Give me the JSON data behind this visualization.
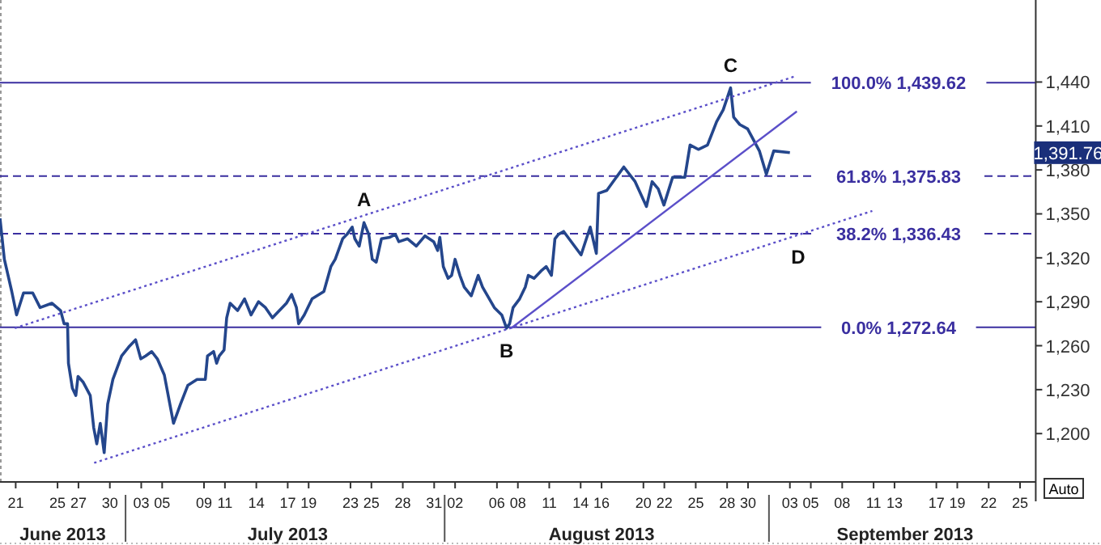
{
  "chart_data": {
    "type": "line",
    "xlim": [
      "2013-06-19T12:00",
      "2013-09-26T12:00"
    ],
    "xticks": [
      {
        "value": "2013-06-21",
        "label": "21"
      },
      {
        "value": "2013-06-25",
        "label": "25"
      },
      {
        "value": "2013-06-27",
        "label": "27"
      },
      {
        "value": "2013-06-30",
        "label": "30"
      },
      {
        "value": "2013-07-03",
        "label": "03"
      },
      {
        "value": "2013-07-05",
        "label": "05"
      },
      {
        "value": "2013-07-09",
        "label": "09"
      },
      {
        "value": "2013-07-11",
        "label": "11"
      },
      {
        "value": "2013-07-14",
        "label": "14"
      },
      {
        "value": "2013-07-17",
        "label": "17"
      },
      {
        "value": "2013-07-19",
        "label": "19"
      },
      {
        "value": "2013-07-23",
        "label": "23"
      },
      {
        "value": "2013-07-25",
        "label": "25"
      },
      {
        "value": "2013-07-28",
        "label": "28"
      },
      {
        "value": "2013-07-31",
        "label": "31"
      },
      {
        "value": "2013-08-02",
        "label": "02"
      },
      {
        "value": "2013-08-06",
        "label": "06"
      },
      {
        "value": "2013-08-08",
        "label": "08"
      },
      {
        "value": "2013-08-11",
        "label": "11"
      },
      {
        "value": "2013-08-14",
        "label": "14"
      },
      {
        "value": "2013-08-16",
        "label": "16"
      },
      {
        "value": "2013-08-20",
        "label": "20"
      },
      {
        "value": "2013-08-22",
        "label": "22"
      },
      {
        "value": "2013-08-25",
        "label": "25"
      },
      {
        "value": "2013-08-28",
        "label": "28"
      },
      {
        "value": "2013-08-30",
        "label": "30"
      },
      {
        "value": "2013-09-03",
        "label": "03"
      },
      {
        "value": "2013-09-05",
        "label": "05"
      },
      {
        "value": "2013-09-08",
        "label": "08"
      },
      {
        "value": "2013-09-11",
        "label": "11"
      },
      {
        "value": "2013-09-13",
        "label": "13"
      },
      {
        "value": "2013-09-17",
        "label": "17"
      },
      {
        "value": "2013-09-19",
        "label": "19"
      },
      {
        "value": "2013-09-22",
        "label": "22"
      },
      {
        "value": "2013-09-25",
        "label": "25"
      }
    ],
    "ylim": [
      1167,
      1496
    ],
    "yticks": [
      {
        "value": 1200,
        "label": "1,200"
      },
      {
        "value": 1230,
        "label": "1,230"
      },
      {
        "value": 1260,
        "label": "1,260"
      },
      {
        "value": 1290,
        "label": "1,290"
      },
      {
        "value": 1320,
        "label": "1,320"
      },
      {
        "value": 1350,
        "label": "1,350"
      },
      {
        "value": 1380,
        "label": "1,380"
      },
      {
        "value": 1410,
        "label": "1,410"
      },
      {
        "value": 1440,
        "label": "1,440"
      }
    ],
    "grid": false,
    "series": [
      {
        "color": "#24468c",
        "line_style": "solid",
        "x": [
          "2013-06-19T12:00",
          "2013-06-19T22:00",
          "2013-06-20T15:00",
          "2013-06-21T02:00",
          "2013-06-21T18:00",
          "2013-06-22T15:00",
          "2013-06-23T08:00",
          "2013-06-24T11:00",
          "2013-06-25T07:00",
          "2013-06-25T15:00",
          "2013-06-25T23:00",
          "2013-06-26T01:00",
          "2013-06-26T10:00",
          "2013-06-26T18:00",
          "2013-06-26T23:00",
          "2013-06-27T11:00",
          "2013-06-28T03:00",
          "2013-06-28T11:00",
          "2013-06-28T18:00",
          "2013-06-29T02:00",
          "2013-06-29T11:00",
          "2013-06-29T19:00",
          "2013-06-30T07:00",
          "2013-07-01T03:00",
          "2013-07-01T19:00",
          "2013-07-02T11:00",
          "2013-07-02T23:00",
          "2013-07-03T10:00",
          "2013-07-04T00:00",
          "2013-07-04T13:00",
          "2013-07-05T05:00",
          "2013-07-06T02:00",
          "2013-07-06T18:00",
          "2013-07-07T11:00",
          "2013-07-08T08:00",
          "2013-07-09T03:00",
          "2013-07-09T08:00",
          "2013-07-09T22:00",
          "2013-07-10T05:00",
          "2013-07-10T11:00",
          "2013-07-10T22:00",
          "2013-07-11T04:00",
          "2013-07-11T12:00",
          "2013-07-12T05:00",
          "2013-07-12T21:00",
          "2013-07-13T12:00",
          "2013-07-14T05:00",
          "2013-07-14T21:00",
          "2013-07-15T13:00",
          "2013-07-16T21:00",
          "2013-07-17T09:00",
          "2013-07-17T20:00",
          "2013-07-18T01:00",
          "2013-07-18T14:00",
          "2013-07-19T08:00",
          "2013-07-20T11:00",
          "2013-07-21T03:00",
          "2013-07-21T13:00",
          "2013-07-22T06:00",
          "2013-07-22T16:00",
          "2013-07-23T04:00",
          "2013-07-23T10:00",
          "2013-07-23T20:00",
          "2013-07-24T07:00",
          "2013-07-24T18:00",
          "2013-07-25T02:00",
          "2013-07-25T11:00",
          "2013-07-25T23:00",
          "2013-07-26T18:00",
          "2013-07-27T07:00",
          "2013-07-27T15:00",
          "2013-07-28T11:00",
          "2013-07-29T07:00",
          "2013-07-30T03:00",
          "2013-07-30T23:00",
          "2013-07-31T08:00",
          "2013-07-31T13:00",
          "2013-07-31T21:00",
          "2013-08-01T08:00",
          "2013-08-01T16:00",
          "2013-08-02T00:00",
          "2013-08-02T11:00",
          "2013-08-02T21:00",
          "2013-08-03T13:00",
          "2013-08-04T05:00",
          "2013-08-04T15:00",
          "2013-08-05T18:00",
          "2013-08-06T11:00",
          "2013-08-06T22:00",
          "2013-08-07T05:00",
          "2013-08-07T13:00",
          "2013-08-08T04:00",
          "2013-08-08T17:00",
          "2013-08-09T00:00",
          "2013-08-09T13:00",
          "2013-08-10T05:00",
          "2013-08-10T17:00",
          "2013-08-11T05:00",
          "2013-08-11T13:00",
          "2013-08-11T21:00",
          "2013-08-12T09:00",
          "2013-08-14T01:00",
          "2013-08-14T22:00",
          "2013-08-15T12:00",
          "2013-08-15T17:00",
          "2013-08-16T12:00",
          "2013-08-18T03:00",
          "2013-08-19T05:00",
          "2013-08-20T07:00",
          "2013-08-20T20:00",
          "2013-08-21T10:00",
          "2013-08-21T23:00",
          "2013-08-22T19:00",
          "2013-08-23T23:00",
          "2013-08-24T11:00",
          "2013-08-25T06:00",
          "2013-08-26T03:00",
          "2013-08-27T00:00",
          "2013-08-27T15:00",
          "2013-08-28T08:00",
          "2013-08-28T15:00",
          "2013-08-29T05:00",
          "2013-08-29T23:00",
          "2013-08-31T02:00",
          "2013-08-31T18:00",
          "2013-09-01T11:00",
          "2013-09-03T00:00"
        ],
        "values": [
          1347,
          1319,
          1297,
          1281,
          1296,
          1296,
          1286,
          1289,
          1284,
          1275,
          1275,
          1248,
          1231,
          1226,
          1239,
          1235,
          1226,
          1204,
          1193,
          1207,
          1187,
          1220,
          1237,
          1253,
          1259,
          1264,
          1251,
          1253,
          1256,
          1251,
          1240,
          1207,
          1220,
          1233,
          1237,
          1237,
          1253,
          1256,
          1248,
          1253,
          1257,
          1279,
          1289,
          1284,
          1292,
          1281,
          1290,
          1286,
          1279,
          1289,
          1295,
          1286,
          1275,
          1281,
          1292,
          1297,
          1314,
          1319,
          1333,
          1336,
          1341,
          1333,
          1328,
          1344,
          1336,
          1319,
          1317,
          1333,
          1334,
          1336,
          1331,
          1333,
          1328,
          1335,
          1331,
          1325,
          1334,
          1314,
          1306,
          1308,
          1319,
          1308,
          1300,
          1294,
          1308,
          1300,
          1286,
          1281,
          1272,
          1275,
          1286,
          1292,
          1300,
          1308,
          1306,
          1311,
          1314,
          1308,
          1333,
          1336,
          1338,
          1322,
          1341,
          1323,
          1364,
          1366,
          1382,
          1372,
          1355,
          1372,
          1367,
          1356,
          1375,
          1375,
          1397,
          1394,
          1397,
          1413,
          1421,
          1436,
          1416,
          1411,
          1408,
          1393,
          1377,
          1393,
          1391.76
        ]
      },
      {
        "color": "#5b4fc9",
        "line_style": "dotted",
        "x": [
          "2013-06-20T22:00",
          "2013-09-03T13:00"
        ],
        "values": [
          1272,
          1444
        ]
      },
      {
        "color": "#5b4fc9",
        "line_style": "dotted",
        "x": [
          "2013-06-28T12:00",
          "2013-09-10T21:00"
        ],
        "values": [
          1180,
          1352
        ]
      },
      {
        "color": "#5b4fc9",
        "line_style": "solid",
        "x": [
          "2013-08-07T09:00",
          "2013-09-03T16:00"
        ],
        "values": [
          1272,
          1420
        ]
      }
    ],
    "ref_lines": [
      {
        "axis": "y",
        "value": 1439.62,
        "label": "100.0%  1,439.62",
        "color": "#3a2fa0",
        "line_style": "solid"
      },
      {
        "axis": "y",
        "value": 1375.83,
        "label": "61.8%  1,375.83",
        "color": "#3a2fa0",
        "line_style": "dashed"
      },
      {
        "axis": "y",
        "value": 1336.43,
        "label": "38.2%  1,336.43",
        "color": "#3a2fa0",
        "line_style": "dashed"
      },
      {
        "axis": "y",
        "value": 1272.64,
        "label": "0.0%  1,272.64",
        "color": "#3a2fa0",
        "line_style": "solid"
      }
    ],
    "annotations": [
      {
        "text": "A",
        "x": "2013-07-24T07:00",
        "y": 1344
      },
      {
        "text": "B",
        "x": "2013-08-06T22:00",
        "y": 1272
      },
      {
        "text": "C",
        "x": "2013-08-28T08:00",
        "y": 1436
      },
      {
        "text": "D",
        "x": "2013-09-03T19:00",
        "y": 1336
      },
      "1,391.76",
      "Auto",
      "June 2013",
      "July 2013",
      "August 2013",
      "September 2013"
    ]
  }
}
